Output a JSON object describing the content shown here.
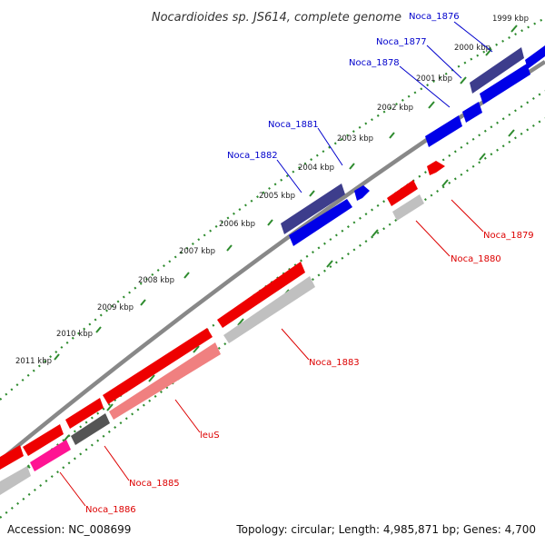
{
  "title": "Nocardioides sp. JS614, complete genome",
  "footer": {
    "accession": "Accession: NC_008699",
    "topology": "Topology: circular; Length: 4,985,871 bp; Genes: 4,700"
  },
  "colors": {
    "forward_cds": "#0000e8",
    "forward_cds_dark": "#3d3d8c",
    "reverse_cds": "#ee0000",
    "reverse_cds_light": "#f08080",
    "reverse_cds_pink": "#ff1493",
    "gray_feature": "#c0c0c0",
    "dark_gray_feature": "#555555",
    "backbone": "#888888",
    "tick": "#2e8b2e",
    "forward_label": "#0000cc",
    "reverse_label": "#dd0000"
  },
  "ticks": [
    {
      "label": "1999 kbp"
    },
    {
      "label": "2000 kbp"
    },
    {
      "label": "2001 kbp"
    },
    {
      "label": "2002 kbp"
    },
    {
      "label": "2003 kbp"
    },
    {
      "label": "2004 kbp"
    },
    {
      "label": "2005 kbp"
    },
    {
      "label": "2006 kbp"
    },
    {
      "label": "2007 kbp"
    },
    {
      "label": "2008 kbp"
    },
    {
      "label": "2009 kbp"
    },
    {
      "label": "2010 kbp"
    },
    {
      "label": "2011 kbp"
    }
  ],
  "forward_labels": [
    "Noca_1876",
    "Noca_1877",
    "Noca_1878",
    "Noca_1881",
    "Noca_1882"
  ],
  "reverse_labels": [
    "Noca_1879",
    "Noca_1880",
    "Noca_1883",
    "leuS",
    "Noca_1885",
    "Noca_1886"
  ]
}
